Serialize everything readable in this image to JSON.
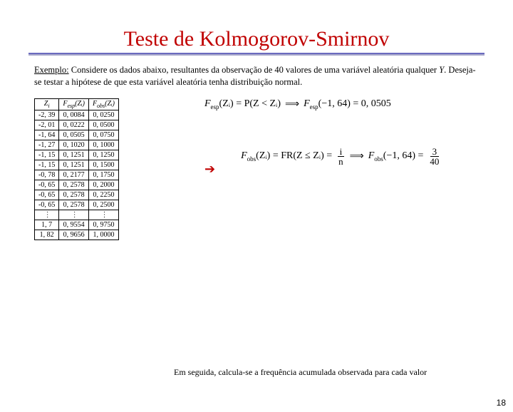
{
  "title": "Teste de Kolmogorov-Smirnov",
  "example": {
    "label": "Exemplo:",
    "text1": " Considere os dados abaixo, resultantes da observação de 40 valores de uma variável aleatória qualquer ",
    "var": "Y",
    "text2": ". Deseja-se testar a hipótese de que esta variável aleatória tenha distribuição normal."
  },
  "table": {
    "headers": {
      "z": "Z",
      "zsub": "i",
      "fesp": "F",
      "fesp_sub": "esp",
      "fesp_arg": "(Zᵢ)",
      "fobs": "F",
      "fobs_sub": "obs",
      "fobs_arg": "(Zᵢ)"
    },
    "rows": [
      {
        "z": "-2, 39",
        "fesp": "0, 0084",
        "fobs": "0, 0250"
      },
      {
        "z": "-2, 01",
        "fesp": "0, 0222",
        "fobs": "0, 0500"
      },
      {
        "z": "-1, 64",
        "fesp": "0, 0505",
        "fobs": "0, 0750"
      },
      {
        "z": "-1, 27",
        "fesp": "0, 1020",
        "fobs": "0, 1000"
      },
      {
        "z": "-1, 15",
        "fesp": "0, 1251",
        "fobs": "0, 1250"
      },
      {
        "z": "-1, 15",
        "fesp": "0, 1251",
        "fobs": "0, 1500"
      },
      {
        "z": "-0, 78",
        "fesp": "0, 2177",
        "fobs": "0, 1750"
      },
      {
        "z": "-0, 65",
        "fesp": "0, 2578",
        "fobs": "0, 2000"
      },
      {
        "z": "-0, 65",
        "fesp": "0, 2578",
        "fobs": "0, 2250"
      },
      {
        "z": "-0, 65",
        "fesp": "0, 2578",
        "fobs": "0, 2500"
      },
      {
        "z": "⋮",
        "fesp": "⋮",
        "fobs": "⋮"
      },
      {
        "z": "1, 7",
        "fesp": "0, 9554",
        "fobs": "0, 9750"
      },
      {
        "z": "1, 82",
        "fesp": "0, 9656",
        "fobs": "1, 0000"
      }
    ]
  },
  "formulas": {
    "f1_lhs1": "F",
    "f1_sub1": "esp",
    "f1_arg1": "(Zᵢ) = P(Z < Zᵢ)",
    "f1_implies": "⟹",
    "f1_lhs2": "F",
    "f1_sub2": "esp",
    "f1_arg2": "(−1, 64) = 0, 0505",
    "f2_lhs1": "F",
    "f2_sub1": "obs",
    "f2_arg1": "(Zᵢ) = FR(Z ≤ Zᵢ) =",
    "f2_frac_num": "i",
    "f2_frac_den": "n",
    "f2_implies": "⟹",
    "f2_lhs2": "F",
    "f2_sub2": "obs",
    "f2_arg2": "(−1, 64) =",
    "f2_frac2_num": "3",
    "f2_frac2_den": "40"
  },
  "caption": "Em seguida, calcula-se a frequência acumulada observada para cada valor",
  "page_number": "18",
  "colors": {
    "title": "#c00000",
    "underline1": "#6b6bbf",
    "underline2": "#aaaacc",
    "arrow": "#c00000",
    "bg": "#ffffff"
  }
}
